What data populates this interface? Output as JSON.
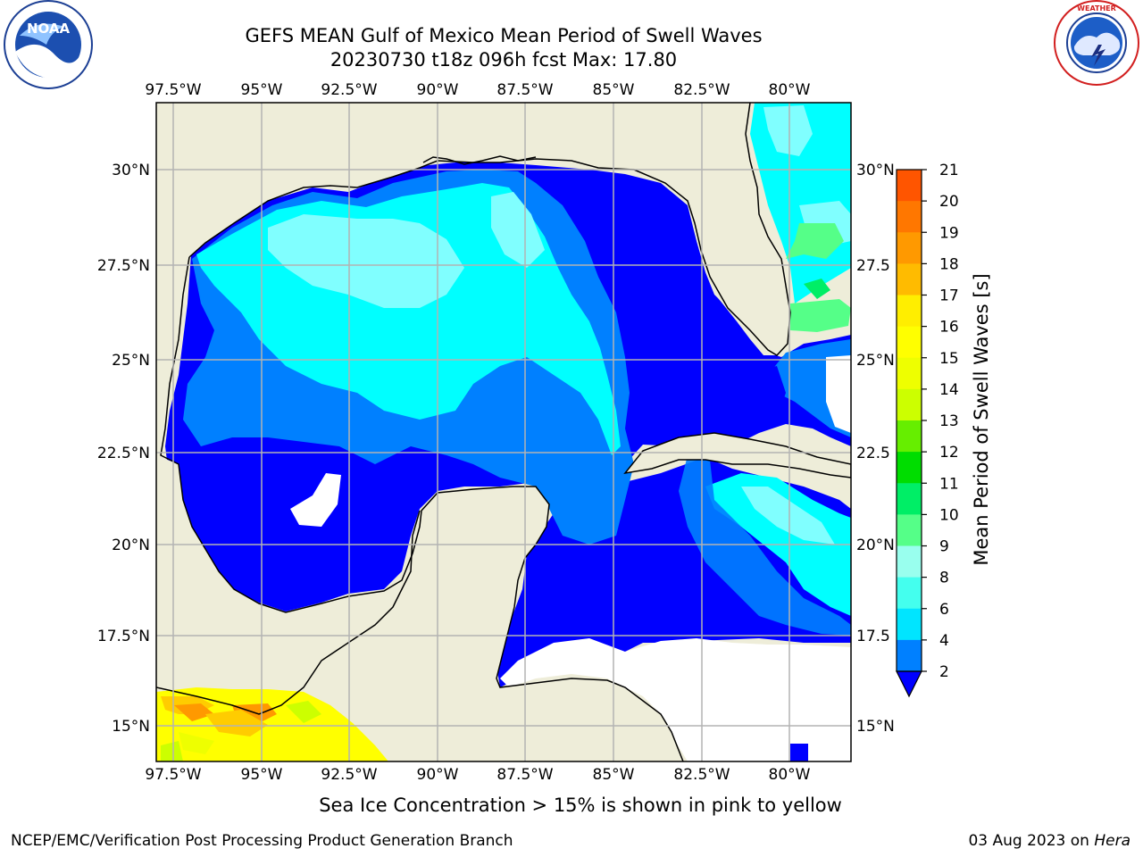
{
  "header": {
    "title_line1": "GEFS MEAN Gulf of Mexico Mean Period of Swell Waves",
    "title_line2": "20230730 t18z 096h fcst   Max: 17.80"
  },
  "logos": {
    "left": "NOAA",
    "left_ring_text": "NATIONAL OCEANIC AND ATMOSPHERIC ADMINISTRATION · U.S. DEPARTMENT OF COMMERCE",
    "right_ring_text": "NATIONAL WEATHER SERVICE"
  },
  "map": {
    "lon_labels": [
      "97.5°W",
      "95°W",
      "92.5°W",
      "90°W",
      "87.5°W",
      "85°W",
      "82.5°W",
      "80°W"
    ],
    "lat_labels_left": [
      "30°N",
      "27.5°N",
      "25°N",
      "22.5°N",
      "20°N",
      "17.5°N",
      "15°N"
    ],
    "lat_labels_right": [
      "30°N",
      "27.5",
      "25°N",
      "22.5",
      "20°N",
      "17.5",
      "15°N"
    ],
    "land_color": "#eeedd9",
    "ocean_colors": {
      "2-4": "#0000ff",
      "4-6": "#0080ff",
      "6-8": "#00ffff",
      "8-9": "#80ffff"
    }
  },
  "colorbar": {
    "label": "Mean Period of Swell Waves [s]",
    "ticks": [
      "21",
      "20",
      "19",
      "18",
      "17",
      "16",
      "15",
      "14",
      "13",
      "12",
      "11",
      "10",
      "9",
      "8",
      "6",
      "4",
      "2"
    ],
    "colors": [
      "#ff0000",
      "#ff3300",
      "#ff5500",
      "#ff7700",
      "#ff9900",
      "#ffbb00",
      "#ffee00",
      "#ffff00",
      "#eeff00",
      "#ccff00",
      "#66ee00",
      "#00dd00",
      "#00ee66",
      "#55ff88",
      "#99ffee",
      "#44ffee",
      "#00e5ff",
      "#0080ff",
      "#0000ff"
    ]
  },
  "note": "Sea Ice Concentration > 15% is shown in pink to yellow",
  "footer": {
    "left": "NCEP/EMC/Verification Post Processing Product Generation Branch",
    "right_date": "03 Aug 2023 on",
    "right_host": "Hera"
  }
}
